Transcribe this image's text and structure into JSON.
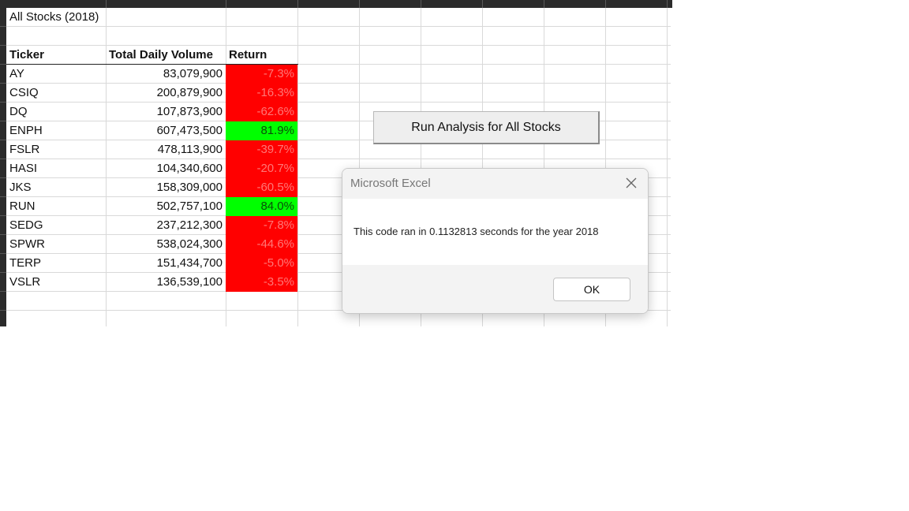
{
  "sheet": {
    "title": "All Stocks (2018)",
    "headers": {
      "ticker": "Ticker",
      "volume": "Total Daily Volume",
      "return": "Return"
    },
    "rows": [
      {
        "ticker": "AY",
        "volume": "83,079,900",
        "return": "-7.3%",
        "positive": false
      },
      {
        "ticker": "CSIQ",
        "volume": "200,879,900",
        "return": "-16.3%",
        "positive": false
      },
      {
        "ticker": "DQ",
        "volume": "107,873,900",
        "return": "-62.6%",
        "positive": false
      },
      {
        "ticker": "ENPH",
        "volume": "607,473,500",
        "return": "81.9%",
        "positive": true
      },
      {
        "ticker": "FSLR",
        "volume": "478,113,900",
        "return": "-39.7%",
        "positive": false
      },
      {
        "ticker": "HASI",
        "volume": "104,340,600",
        "return": "-20.7%",
        "positive": false
      },
      {
        "ticker": "JKS",
        "volume": "158,309,000",
        "return": "-60.5%",
        "positive": false
      },
      {
        "ticker": "RUN",
        "volume": "502,757,100",
        "return": "84.0%",
        "positive": true
      },
      {
        "ticker": "SEDG",
        "volume": "237,212,300",
        "return": "-7.8%",
        "positive": false
      },
      {
        "ticker": "SPWR",
        "volume": "538,024,300",
        "return": "-44.6%",
        "positive": false
      },
      {
        "ticker": "TERP",
        "volume": "151,434,700",
        "return": "-5.0%",
        "positive": false
      },
      {
        "ticker": "VSLR",
        "volume": "136,539,100",
        "return": "-3.5%",
        "positive": false
      }
    ]
  },
  "colors": {
    "negative_fill": "#ff0000",
    "positive_fill": "#00ff00"
  },
  "macro_button": {
    "label": "Run Analysis for All Stocks"
  },
  "dialog": {
    "title": "Microsoft Excel",
    "message": "This code ran in 0.1132813 seconds for the year 2018",
    "ok_label": "OK",
    "close_icon": "close-icon"
  }
}
